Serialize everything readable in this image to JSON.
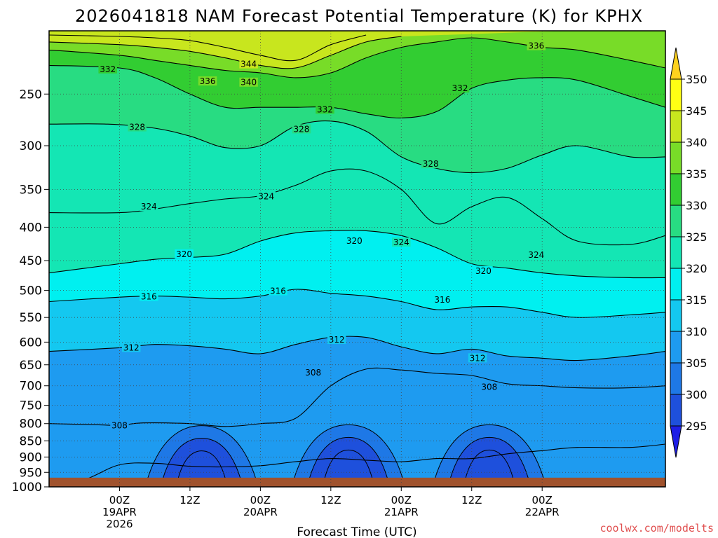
{
  "chart_data": {
    "type": "heatmap",
    "title": "2026041818 NAM Forecast Potential Temperature (K) for KPHX",
    "xlabel": "Forecast Time (UTC)",
    "y_axis": {
      "scale": "pressure (log)",
      "range": [
        1000,
        200
      ],
      "ticks": [
        "250",
        "300",
        "350",
        "400",
        "450",
        "500",
        "550",
        "600",
        "650",
        "700",
        "750",
        "800",
        "850",
        "900",
        "950",
        "1000"
      ]
    },
    "x_axis": {
      "range_hours": [
        -6,
        99
      ],
      "ticks": [
        {
          "hour": 6,
          "line1": "00Z",
          "line2": "19APR",
          "line3": "2026"
        },
        {
          "hour": 18,
          "line1": "12Z",
          "line2": "",
          "line3": ""
        },
        {
          "hour": 30,
          "line1": "00Z",
          "line2": "20APR",
          "line3": ""
        },
        {
          "hour": 42,
          "line1": "12Z",
          "line2": "",
          "line3": ""
        },
        {
          "hour": 54,
          "line1": "00Z",
          "line2": "21APR",
          "line3": ""
        },
        {
          "hour": 66,
          "line1": "12Z",
          "line2": "",
          "line3": ""
        },
        {
          "hour": 78,
          "line1": "00Z",
          "line2": "22APR",
          "line3": ""
        }
      ]
    },
    "grid": true,
    "colorbar": {
      "placement": "right",
      "levels": [
        "295",
        "300",
        "305",
        "310",
        "315",
        "320",
        "325",
        "330",
        "335",
        "340",
        "345",
        "350"
      ],
      "colors": [
        "#1e1ee6",
        "#1e50dc",
        "#1e78e6",
        "#1e9bf0",
        "#14c8f0",
        "#00f0f0",
        "#14e6b4",
        "#28dc82",
        "#32cd32",
        "#78dc28",
        "#c8e61e",
        "#ffff14",
        "#ffd21e"
      ]
    },
    "ground": {
      "color": "#a0522d",
      "pressure_top": 968
    },
    "contours": [
      {
        "theta": 308,
        "hp": [
          [
            -6,
            995
          ],
          [
            0,
            975
          ],
          [
            6,
            925
          ],
          [
            12,
            920
          ],
          [
            18,
            930
          ],
          [
            24,
            932
          ],
          [
            30,
            928
          ],
          [
            36,
            915
          ],
          [
            42,
            905
          ],
          [
            48,
            910
          ],
          [
            54,
            915
          ],
          [
            60,
            905
          ],
          [
            66,
            905
          ],
          [
            72,
            890
          ],
          [
            78,
            880
          ],
          [
            84,
            870
          ],
          [
            93,
            870
          ],
          [
            99,
            860
          ]
        ]
      },
      {
        "theta": 308,
        "hp": [
          [
            -6,
            800
          ],
          [
            2,
            803
          ],
          [
            6,
            805
          ],
          [
            10,
            798
          ],
          [
            18,
            800
          ],
          [
            24,
            808
          ],
          [
            30,
            800
          ],
          [
            36,
            785
          ],
          [
            42,
            700
          ],
          [
            48,
            660
          ],
          [
            54,
            662
          ],
          [
            60,
            670
          ],
          [
            66,
            675
          ],
          [
            72,
            695
          ],
          [
            78,
            700
          ],
          [
            84,
            705
          ],
          [
            93,
            705
          ],
          [
            99,
            700
          ]
        ]
      },
      {
        "theta": 312,
        "hp": [
          [
            -6,
            620
          ],
          [
            6,
            612
          ],
          [
            12,
            605
          ],
          [
            18,
            608
          ],
          [
            24,
            615
          ],
          [
            30,
            625
          ],
          [
            36,
            605
          ],
          [
            42,
            590
          ],
          [
            48,
            590
          ],
          [
            54,
            610
          ],
          [
            60,
            625
          ],
          [
            66,
            615
          ],
          [
            72,
            630
          ],
          [
            78,
            635
          ],
          [
            84,
            640
          ],
          [
            93,
            630
          ],
          [
            99,
            620
          ]
        ]
      },
      {
        "theta": 316,
        "hp": [
          [
            -6,
            520
          ],
          [
            6,
            512
          ],
          [
            12,
            510
          ],
          [
            18,
            512
          ],
          [
            24,
            515
          ],
          [
            30,
            510
          ],
          [
            36,
            498
          ],
          [
            42,
            505
          ],
          [
            48,
            510
          ],
          [
            54,
            520
          ],
          [
            60,
            535
          ],
          [
            66,
            530
          ],
          [
            72,
            530
          ],
          [
            78,
            540
          ],
          [
            84,
            550
          ],
          [
            93,
            545
          ],
          [
            99,
            540
          ]
        ]
      },
      {
        "theta": 320,
        "hp": [
          [
            -6,
            470
          ],
          [
            6,
            455
          ],
          [
            12,
            448
          ],
          [
            18,
            445
          ],
          [
            24,
            440
          ],
          [
            30,
            420
          ],
          [
            36,
            408
          ],
          [
            42,
            405
          ],
          [
            48,
            405
          ],
          [
            54,
            412
          ],
          [
            60,
            430
          ],
          [
            66,
            455
          ],
          [
            72,
            462
          ],
          [
            78,
            470
          ],
          [
            84,
            475
          ],
          [
            93,
            478
          ],
          [
            99,
            478
          ]
        ]
      },
      {
        "theta": 324,
        "hp": [
          [
            -6,
            380
          ],
          [
            6,
            380
          ],
          [
            12,
            375
          ],
          [
            18,
            368
          ],
          [
            24,
            362
          ],
          [
            30,
            358
          ],
          [
            36,
            345
          ],
          [
            42,
            328
          ],
          [
            48,
            328
          ],
          [
            54,
            350
          ],
          [
            60,
            395
          ],
          [
            66,
            372
          ],
          [
            72,
            360
          ],
          [
            78,
            388
          ],
          [
            84,
            420
          ],
          [
            93,
            425
          ],
          [
            99,
            412
          ]
        ]
      },
      {
        "theta": 328,
        "hp": [
          [
            -6,
            278
          ],
          [
            4,
            278
          ],
          [
            12,
            282
          ],
          [
            18,
            290
          ],
          [
            24,
            302
          ],
          [
            30,
            300
          ],
          [
            36,
            280
          ],
          [
            42,
            275
          ],
          [
            48,
            285
          ],
          [
            54,
            312
          ],
          [
            60,
            325
          ],
          [
            66,
            330
          ],
          [
            72,
            325
          ],
          [
            78,
            310
          ],
          [
            84,
            300
          ],
          [
            93,
            312
          ],
          [
            99,
            312
          ]
        ]
      },
      {
        "theta": 332,
        "hp": [
          [
            -6,
            226
          ],
          [
            6,
            228
          ],
          [
            12,
            236
          ],
          [
            18,
            250
          ],
          [
            24,
            262
          ],
          [
            30,
            262
          ],
          [
            36,
            262
          ],
          [
            42,
            262
          ],
          [
            48,
            268
          ],
          [
            54,
            272
          ],
          [
            60,
            266
          ],
          [
            66,
            245
          ],
          [
            72,
            238
          ],
          [
            78,
            236
          ],
          [
            84,
            238
          ],
          [
            93,
            252
          ],
          [
            99,
            262
          ]
        ]
      },
      {
        "theta": 336,
        "hp": [
          [
            -6,
            214
          ],
          [
            6,
            218
          ],
          [
            12,
            222
          ],
          [
            18,
            226
          ],
          [
            24,
            230
          ],
          [
            30,
            232
          ],
          [
            36,
            236
          ],
          [
            42,
            232
          ],
          [
            48,
            220
          ],
          [
            54,
            212
          ],
          [
            60,
            208
          ],
          [
            66,
            205
          ],
          [
            72,
            208
          ],
          [
            78,
            212
          ],
          [
            84,
            214
          ],
          [
            93,
            222
          ],
          [
            99,
            228
          ]
        ]
      },
      {
        "theta": 340,
        "hp": [
          [
            -6,
            208
          ],
          [
            6,
            210
          ],
          [
            12,
            212
          ],
          [
            18,
            215
          ],
          [
            24,
            220
          ],
          [
            30,
            226
          ],
          [
            36,
            228
          ],
          [
            42,
            218
          ],
          [
            48,
            208
          ],
          [
            54,
            204
          ]
        ]
      },
      {
        "theta": 344,
        "hp": [
          [
            -6,
            203
          ],
          [
            6,
            204
          ],
          [
            12,
            205
          ],
          [
            18,
            207
          ],
          [
            24,
            212
          ],
          [
            30,
            218
          ],
          [
            36,
            222
          ],
          [
            42,
            210
          ],
          [
            48,
            203
          ]
        ]
      }
    ],
    "contour_labels": [
      {
        "text": "332",
        "h": 4,
        "p": 229
      },
      {
        "text": "336",
        "h": 77,
        "p": 211
      },
      {
        "text": "344",
        "h": 28,
        "p": 225
      },
      {
        "text": "336",
        "h": 21,
        "p": 239
      },
      {
        "text": "340",
        "h": 28,
        "p": 240
      },
      {
        "text": "332",
        "h": 64,
        "p": 245
      },
      {
        "text": "332",
        "h": 41,
        "p": 264
      },
      {
        "text": "328",
        "h": 9,
        "p": 281
      },
      {
        "text": "328",
        "h": 37,
        "p": 283
      },
      {
        "text": "328",
        "h": 59,
        "p": 320
      },
      {
        "text": "324",
        "h": 31,
        "p": 359
      },
      {
        "text": "324",
        "h": 11,
        "p": 372
      },
      {
        "text": "320",
        "h": 46,
        "p": 420
      },
      {
        "text": "324",
        "h": 54,
        "p": 422
      },
      {
        "text": "320",
        "h": 17,
        "p": 440
      },
      {
        "text": "324",
        "h": 77,
        "p": 441
      },
      {
        "text": "320",
        "h": 68,
        "p": 467
      },
      {
        "text": "316",
        "h": 33,
        "p": 501
      },
      {
        "text": "316",
        "h": 11,
        "p": 511
      },
      {
        "text": "316",
        "h": 61,
        "p": 517
      },
      {
        "text": "312",
        "h": 43,
        "p": 595
      },
      {
        "text": "312",
        "h": 8,
        "p": 612
      },
      {
        "text": "312",
        "h": 67,
        "p": 635
      },
      {
        "text": "308",
        "h": 39,
        "p": 668
      },
      {
        "text": "308",
        "h": 69,
        "p": 703
      },
      {
        "text": "308",
        "h": 6,
        "p": 805
      }
    ],
    "cold_pools": [
      {
        "h": 20,
        "p": 958,
        "levels": [
          "304",
          "300",
          "296"
        ]
      },
      {
        "h": 45,
        "p": 955,
        "levels": [
          "304",
          "300",
          "296"
        ]
      },
      {
        "h": 69,
        "p": 955,
        "levels": [
          "304",
          "300",
          "296"
        ]
      }
    ]
  },
  "credit": "coolwx.com/modelts"
}
